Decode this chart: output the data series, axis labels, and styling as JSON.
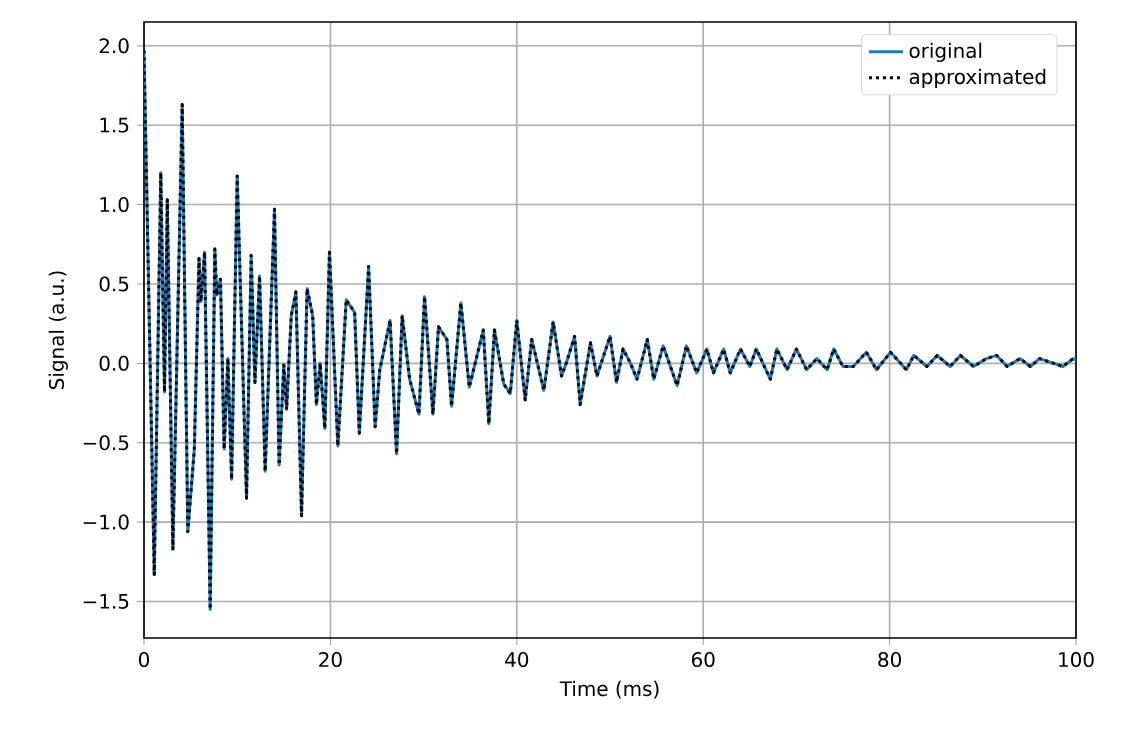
{
  "chart_data": {
    "type": "line",
    "xlabel": "Time (ms)",
    "ylabel": "Signal (a.u.)",
    "xlim": [
      0,
      100
    ],
    "ylim": [
      -1.73,
      2.15
    ],
    "xticks": [
      0,
      20,
      40,
      60,
      80,
      100
    ],
    "yticks": [
      {
        "value": -1.5,
        "label": "−1.5"
      },
      {
        "value": -1,
        "label": "−1.0"
      },
      {
        "value": -0.5,
        "label": "−0.5"
      },
      {
        "value": 0,
        "label": "0.0"
      },
      {
        "value": 0.5,
        "label": "0.5"
      },
      {
        "value": 1,
        "label": "1.0"
      },
      {
        "value": 1.5,
        "label": "1.5"
      },
      {
        "value": 2,
        "label": "2.0"
      }
    ],
    "grid": true,
    "legend": "top right",
    "x": [
      0,
      1.1,
      1.8,
      2.2,
      2.5,
      3.1,
      4.1,
      4.7,
      5.4,
      5.9,
      6.1,
      6.5,
      7.1,
      7.6,
      7.8,
      8.2,
      8.6,
      9.0,
      9.4,
      10.0,
      11.0,
      11.5,
      11.9,
      12.4,
      13.0,
      14.0,
      14.5,
      15.0,
      15.3,
      15.8,
      16.3,
      16.9,
      17.5,
      18.1,
      18.5,
      18.9,
      19.4,
      19.9,
      20.8,
      21.7,
      22.6,
      23.1,
      24.1,
      24.8,
      25.3,
      26.4,
      27.1,
      27.7,
      28.5,
      29.5,
      30.1,
      31.0,
      31.6,
      32.5,
      33.0,
      34.0,
      34.9,
      35.7,
      36.4,
      37.0,
      37.6,
      38.6,
      39.3,
      40.0,
      40.9,
      41.6,
      42.9,
      43.9,
      44.8,
      45.3,
      46.2,
      46.8,
      47.9,
      48.6,
      50.0,
      50.7,
      51.4,
      52.2,
      52.9,
      54.0,
      54.7,
      55.7,
      57.2,
      58.2,
      59.3,
      60.4,
      61.1,
      62.2,
      62.9,
      64.0,
      65.0,
      65.7,
      67.2,
      67.9,
      69.0,
      70.0,
      71.1,
      72.2,
      73.3,
      74.0,
      75.0,
      76.1,
      77.5,
      78.6,
      80.1,
      81.8,
      82.6,
      84.0,
      85.1,
      86.5,
      87.6,
      89.0,
      90.4,
      91.5,
      92.6,
      94.0,
      95.1,
      96.1,
      97.6,
      98.6,
      99.7,
      100
    ],
    "series": [
      {
        "name": "original",
        "color": "#1f77b4",
        "line_style": "solid",
        "values": [
          1.97,
          -1.33,
          1.2,
          -0.18,
          1.03,
          -1.17,
          1.63,
          -1.06,
          -0.54,
          0.66,
          0.39,
          0.7,
          -1.55,
          0.72,
          0.43,
          0.53,
          -0.54,
          0.03,
          -0.73,
          1.18,
          -0.85,
          0.68,
          -0.12,
          0.55,
          -0.68,
          0.97,
          -0.64,
          -0.01,
          -0.29,
          0.3,
          0.45,
          -0.96,
          0.47,
          0.3,
          -0.26,
          0,
          -0.41,
          0.7,
          -0.52,
          0.4,
          0.32,
          -0.44,
          0.61,
          -0.4,
          -0.04,
          0.27,
          -0.57,
          0.3,
          -0.1,
          -0.32,
          0.42,
          -0.32,
          0.23,
          0.15,
          -0.27,
          0.38,
          -0.15,
          0.04,
          0.21,
          -0.38,
          0.21,
          -0.13,
          -0.19,
          0.27,
          -0.23,
          0.15,
          -0.17,
          0.26,
          -0.08,
          0,
          0.17,
          -0.26,
          0.13,
          -0.08,
          0.17,
          -0.12,
          0.09,
          0,
          -0.1,
          0.15,
          -0.1,
          0.11,
          -0.14,
          0.11,
          -0.06,
          0.09,
          -0.06,
          0.09,
          -0.06,
          0.09,
          -0.02,
          0.09,
          -0.1,
          0.09,
          -0.04,
          0.09,
          -0.04,
          0.03,
          -0.04,
          0.09,
          -0.02,
          -0.02,
          0.07,
          -0.04,
          0.07,
          -0.04,
          0.05,
          -0.02,
          0.05,
          -0.02,
          0.05,
          -0.02,
          0.03,
          0.05,
          -0.02,
          0.03,
          -0.02,
          0.03,
          0,
          -0.02,
          0.03,
          0.02
        ]
      },
      {
        "name": "approximated",
        "color": "#000000",
        "line_style": "dotted",
        "values": [
          1.97,
          -1.33,
          1.2,
          -0.18,
          1.03,
          -1.17,
          1.63,
          -1.06,
          -0.54,
          0.66,
          0.39,
          0.7,
          -1.55,
          0.72,
          0.43,
          0.53,
          -0.54,
          0.03,
          -0.73,
          1.18,
          -0.85,
          0.68,
          -0.12,
          0.55,
          -0.68,
          0.97,
          -0.64,
          -0.01,
          -0.29,
          0.3,
          0.45,
          -0.96,
          0.47,
          0.3,
          -0.26,
          0,
          -0.41,
          0.7,
          -0.52,
          0.4,
          0.32,
          -0.44,
          0.61,
          -0.4,
          -0.04,
          0.27,
          -0.57,
          0.3,
          -0.1,
          -0.32,
          0.42,
          -0.32,
          0.23,
          0.15,
          -0.27,
          0.38,
          -0.15,
          0.04,
          0.21,
          -0.38,
          0.21,
          -0.13,
          -0.19,
          0.27,
          -0.23,
          0.15,
          -0.17,
          0.26,
          -0.08,
          0,
          0.17,
          -0.26,
          0.13,
          -0.08,
          0.17,
          -0.12,
          0.09,
          0,
          -0.1,
          0.15,
          -0.1,
          0.11,
          -0.14,
          0.11,
          -0.06,
          0.09,
          -0.06,
          0.09,
          -0.06,
          0.09,
          -0.02,
          0.09,
          -0.1,
          0.09,
          -0.04,
          0.09,
          -0.04,
          0.03,
          -0.04,
          0.09,
          -0.02,
          -0.02,
          0.07,
          -0.04,
          0.07,
          -0.04,
          0.05,
          -0.02,
          0.05,
          -0.02,
          0.05,
          -0.02,
          0.03,
          0.05,
          -0.02,
          0.03,
          -0.02,
          0.03,
          0,
          -0.02,
          0.03,
          0.02
        ]
      }
    ]
  }
}
